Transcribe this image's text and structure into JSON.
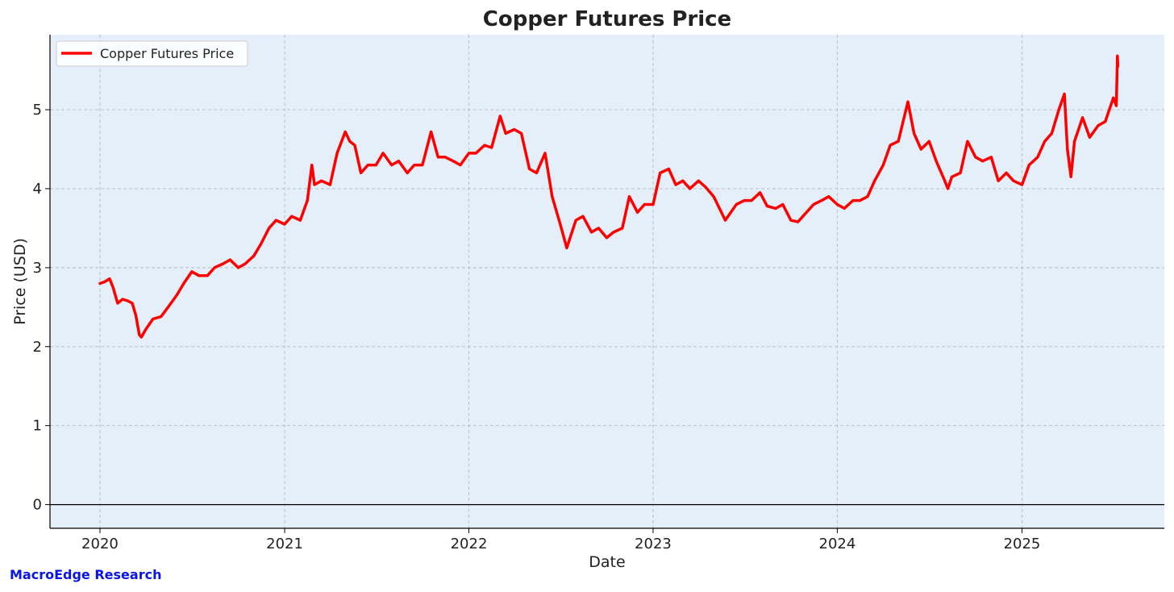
{
  "chart_data": {
    "type": "line",
    "title": "Copper Futures Price",
    "xlabel": "Date",
    "ylabel": "Price (USD)",
    "x_ticks": [
      "2020",
      "2021",
      "2022",
      "2023",
      "2024",
      "2025"
    ],
    "y_ticks": [
      0,
      1,
      2,
      3,
      4,
      5
    ],
    "xlim": [
      "2019-09-24",
      "2025-10-10"
    ],
    "ylim": [
      -0.3,
      5.95
    ],
    "grid": true,
    "legend_position": "top-left",
    "colors": {
      "line": "#ff0000",
      "plot_background": "#e4eff9",
      "zero_line": "#000000"
    },
    "series": [
      {
        "name": "Copper Futures Price",
        "x": [
          "2020-01-01",
          "2020-01-10",
          "2020-01-20",
          "2020-01-27",
          "2020-02-05",
          "2020-02-15",
          "2020-02-25",
          "2020-03-05",
          "2020-03-12",
          "2020-03-19",
          "2020-03-23",
          "2020-04-01",
          "2020-04-15",
          "2020-05-01",
          "2020-05-15",
          "2020-06-01",
          "2020-06-15",
          "2020-07-01",
          "2020-07-15",
          "2020-08-01",
          "2020-08-15",
          "2020-09-01",
          "2020-09-15",
          "2020-10-01",
          "2020-10-15",
          "2020-11-01",
          "2020-11-15",
          "2020-12-01",
          "2020-12-15",
          "2021-01-01",
          "2021-01-15",
          "2021-02-01",
          "2021-02-15",
          "2021-02-24",
          "2021-03-01",
          "2021-03-15",
          "2021-04-01",
          "2021-04-15",
          "2021-05-01",
          "2021-05-10",
          "2021-05-20",
          "2021-06-01",
          "2021-06-15",
          "2021-07-01",
          "2021-07-15",
          "2021-08-01",
          "2021-08-15",
          "2021-09-01",
          "2021-09-15",
          "2021-10-01",
          "2021-10-18",
          "2021-11-01",
          "2021-11-15",
          "2021-12-01",
          "2021-12-15",
          "2022-01-01",
          "2022-01-15",
          "2022-02-01",
          "2022-02-15",
          "2022-03-04",
          "2022-03-15",
          "2022-04-01",
          "2022-04-15",
          "2022-05-01",
          "2022-05-15",
          "2022-06-01",
          "2022-06-15",
          "2022-07-01",
          "2022-07-14",
          "2022-08-01",
          "2022-08-15",
          "2022-09-01",
          "2022-09-15",
          "2022-10-01",
          "2022-10-15",
          "2022-11-01",
          "2022-11-15",
          "2022-12-01",
          "2022-12-15",
          "2023-01-01",
          "2023-01-15",
          "2023-02-01",
          "2023-02-15",
          "2023-03-01",
          "2023-03-15",
          "2023-04-01",
          "2023-04-15",
          "2023-05-01",
          "2023-05-24",
          "2023-06-15",
          "2023-07-01",
          "2023-07-15",
          "2023-08-01",
          "2023-08-15",
          "2023-09-01",
          "2023-09-15",
          "2023-10-01",
          "2023-10-15",
          "2023-11-01",
          "2023-11-15",
          "2023-12-01",
          "2023-12-15",
          "2024-01-01",
          "2024-01-15",
          "2024-02-01",
          "2024-02-15",
          "2024-03-01",
          "2024-03-15",
          "2024-04-01",
          "2024-04-15",
          "2024-05-01",
          "2024-05-20",
          "2024-06-01",
          "2024-06-15",
          "2024-07-01",
          "2024-07-15",
          "2024-08-01",
          "2024-08-07",
          "2024-08-15",
          "2024-09-01",
          "2024-09-15",
          "2024-10-01",
          "2024-10-15",
          "2024-11-01",
          "2024-11-15",
          "2024-12-01",
          "2024-12-15",
          "2025-01-01",
          "2025-01-15",
          "2025-02-01",
          "2025-02-15",
          "2025-03-01",
          "2025-03-15",
          "2025-03-26",
          "2025-04-01",
          "2025-04-08",
          "2025-04-15",
          "2025-05-01",
          "2025-05-15",
          "2025-06-01",
          "2025-06-15",
          "2025-07-01",
          "2025-07-07",
          "2025-07-09",
          "2025-07-10"
        ],
        "values": [
          2.8,
          2.82,
          2.86,
          2.75,
          2.55,
          2.6,
          2.58,
          2.55,
          2.4,
          2.15,
          2.12,
          2.22,
          2.35,
          2.38,
          2.5,
          2.65,
          2.8,
          2.95,
          2.9,
          2.9,
          3.0,
          3.05,
          3.1,
          3.0,
          3.05,
          3.15,
          3.3,
          3.5,
          3.6,
          3.55,
          3.65,
          3.6,
          3.85,
          4.3,
          4.05,
          4.1,
          4.05,
          4.45,
          4.72,
          4.6,
          4.55,
          4.2,
          4.3,
          4.3,
          4.45,
          4.3,
          4.35,
          4.2,
          4.3,
          4.3,
          4.72,
          4.4,
          4.4,
          4.35,
          4.3,
          4.45,
          4.45,
          4.55,
          4.52,
          4.92,
          4.7,
          4.75,
          4.7,
          4.25,
          4.2,
          4.45,
          3.9,
          3.55,
          3.25,
          3.6,
          3.65,
          3.45,
          3.5,
          3.38,
          3.45,
          3.5,
          3.9,
          3.7,
          3.8,
          3.8,
          4.2,
          4.25,
          4.05,
          4.1,
          4.0,
          4.1,
          4.02,
          3.9,
          3.6,
          3.8,
          3.85,
          3.85,
          3.95,
          3.78,
          3.75,
          3.8,
          3.6,
          3.58,
          3.7,
          3.8,
          3.85,
          3.9,
          3.8,
          3.75,
          3.85,
          3.85,
          3.9,
          4.1,
          4.3,
          4.55,
          4.6,
          5.1,
          4.7,
          4.5,
          4.6,
          4.35,
          4.1,
          4.0,
          4.15,
          4.2,
          4.6,
          4.4,
          4.35,
          4.4,
          4.1,
          4.2,
          4.1,
          4.05,
          4.3,
          4.4,
          4.6,
          4.7,
          5.0,
          5.2,
          4.5,
          4.15,
          4.6,
          4.9,
          4.65,
          4.8,
          4.85,
          5.15,
          5.05,
          5.68,
          5.55
        ]
      }
    ]
  },
  "brand": "MacroEdge Research"
}
